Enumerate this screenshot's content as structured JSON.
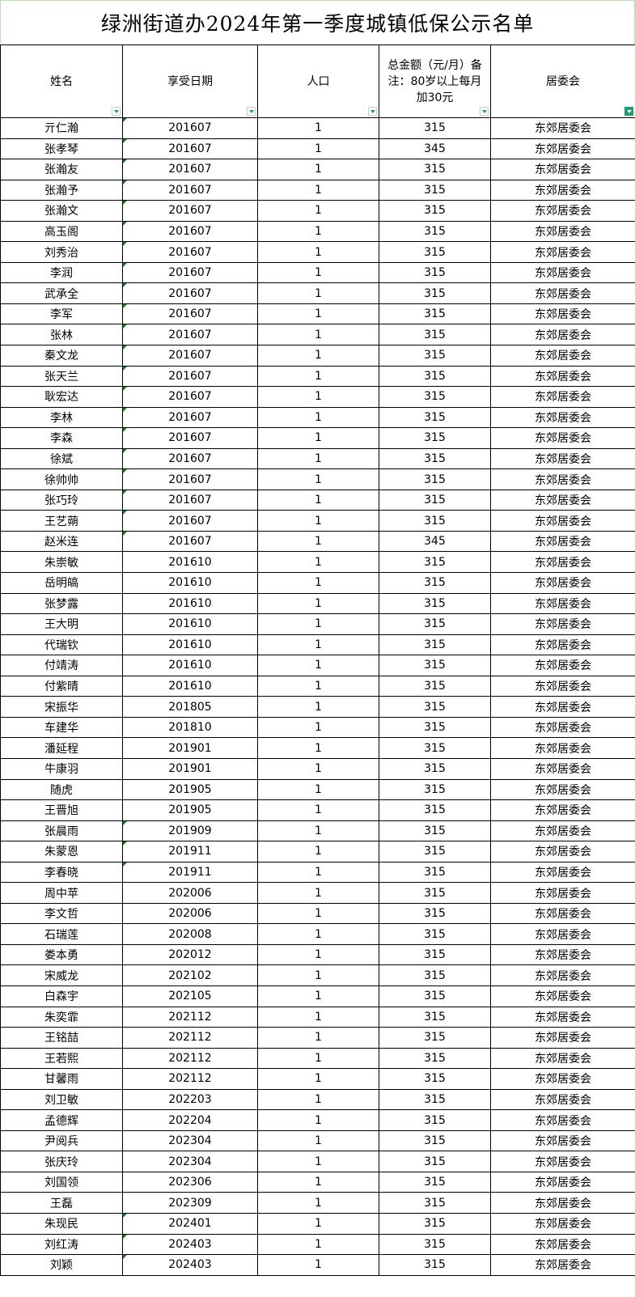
{
  "title": "绿洲街道办2024年第一季度城镇低保公示名单",
  "colors": {
    "filter_accent": "#1a9e6b",
    "text_marker": "#1d7a1d",
    "title_border": "#b9dcb9"
  },
  "columns": [
    {
      "label": "姓名",
      "filter_active": false
    },
    {
      "label": "享受日期",
      "filter_active": false
    },
    {
      "label": "人口",
      "filter_active": false
    },
    {
      "label": "总金额（元/月）备注：80岁以上每月加30元",
      "filter_active": false
    },
    {
      "label": "居委会",
      "filter_active": true
    }
  ],
  "rows": [
    [
      "亓仁瀚",
      "201607",
      "1",
      "315",
      "东郊居委会",
      true
    ],
    [
      "张孝琴",
      "201607",
      "1",
      "345",
      "东郊居委会",
      true
    ],
    [
      "张瀚友",
      "201607",
      "1",
      "315",
      "东郊居委会",
      true
    ],
    [
      "张瀚予",
      "201607",
      "1",
      "315",
      "东郊居委会",
      true
    ],
    [
      "张瀚文",
      "201607",
      "1",
      "315",
      "东郊居委会",
      true
    ],
    [
      "高玉阁",
      "201607",
      "1",
      "315",
      "东郊居委会",
      true
    ],
    [
      "刘秀治",
      "201607",
      "1",
      "315",
      "东郊居委会",
      true
    ],
    [
      "李润",
      "201607",
      "1",
      "315",
      "东郊居委会",
      true
    ],
    [
      "武承全",
      "201607",
      "1",
      "315",
      "东郊居委会",
      true
    ],
    [
      "李军",
      "201607",
      "1",
      "315",
      "东郊居委会",
      true
    ],
    [
      "张林",
      "201607",
      "1",
      "315",
      "东郊居委会",
      true
    ],
    [
      "秦文龙",
      "201607",
      "1",
      "315",
      "东郊居委会",
      true
    ],
    [
      "张天兰",
      "201607",
      "1",
      "315",
      "东郊居委会",
      true
    ],
    [
      "耿宏达",
      "201607",
      "1",
      "315",
      "东郊居委会",
      true
    ],
    [
      "李林",
      "201607",
      "1",
      "315",
      "东郊居委会",
      true
    ],
    [
      "李森",
      "201607",
      "1",
      "315",
      "东郊居委会",
      true
    ],
    [
      "徐斌",
      "201607",
      "1",
      "315",
      "东郊居委会",
      true
    ],
    [
      "徐帅帅",
      "201607",
      "1",
      "315",
      "东郊居委会",
      true
    ],
    [
      "张巧玲",
      "201607",
      "1",
      "315",
      "东郊居委会",
      true
    ],
    [
      "王艺蒴",
      "201607",
      "1",
      "315",
      "东郊居委会",
      true
    ],
    [
      "赵米连",
      "201607",
      "1",
      "345",
      "东郊居委会",
      true
    ],
    [
      "朱崇敏",
      "201610",
      "1",
      "315",
      "东郊居委会",
      false
    ],
    [
      "岳明皜",
      "201610",
      "1",
      "315",
      "东郊居委会",
      false
    ],
    [
      "张梦露",
      "201610",
      "1",
      "315",
      "东郊居委会",
      false
    ],
    [
      "王大明",
      "201610",
      "1",
      "315",
      "东郊居委会",
      false
    ],
    [
      "代瑞钦",
      "201610",
      "1",
      "315",
      "东郊居委会",
      false
    ],
    [
      "付靖涛",
      "201610",
      "1",
      "315",
      "东郊居委会",
      false
    ],
    [
      "付紫晴",
      "201610",
      "1",
      "315",
      "东郊居委会",
      false
    ],
    [
      "宋振华",
      "201805",
      "1",
      "315",
      "东郊居委会",
      false
    ],
    [
      "车建华",
      "201810",
      "1",
      "315",
      "东郊居委会",
      false
    ],
    [
      "潘延程",
      "201901",
      "1",
      "315",
      "东郊居委会",
      false
    ],
    [
      "牛康羽",
      "201901",
      "1",
      "315",
      "东郊居委会",
      false
    ],
    [
      "随虎",
      "201905",
      "1",
      "315",
      "东郊居委会",
      false
    ],
    [
      "王晋旭",
      "201905",
      "1",
      "315",
      "东郊居委会",
      false
    ],
    [
      "张晨雨",
      "201909",
      "1",
      "315",
      "东郊居委会",
      true
    ],
    [
      "朱蒙恩",
      "201911",
      "1",
      "315",
      "东郊居委会",
      true
    ],
    [
      "李春晓",
      "201911",
      "1",
      "315",
      "东郊居委会",
      true
    ],
    [
      "周中苹",
      "202006",
      "1",
      "315",
      "东郊居委会",
      false
    ],
    [
      "李文哲",
      "202006",
      "1",
      "315",
      "东郊居委会",
      false
    ],
    [
      "石瑞莲",
      "202008",
      "1",
      "315",
      "东郊居委会",
      false
    ],
    [
      "娄本勇",
      "202012",
      "1",
      "315",
      "东郊居委会",
      false
    ],
    [
      "宋威龙",
      "202102",
      "1",
      "315",
      "东郊居委会",
      false
    ],
    [
      "白森宇",
      "202105",
      "1",
      "315",
      "东郊居委会",
      false
    ],
    [
      "朱奕霏",
      "202112",
      "1",
      "315",
      "东郊居委会",
      false
    ],
    [
      "王铭喆",
      "202112",
      "1",
      "315",
      "东郊居委会",
      false
    ],
    [
      "王若熙",
      "202112",
      "1",
      "315",
      "东郊居委会",
      false
    ],
    [
      "甘馨雨",
      "202112",
      "1",
      "315",
      "东郊居委会",
      false
    ],
    [
      "刘卫敏",
      "202203",
      "1",
      "315",
      "东郊居委会",
      false
    ],
    [
      "孟德辉",
      "202204",
      "1",
      "315",
      "东郊居委会",
      false
    ],
    [
      "尹阅兵",
      "202304",
      "1",
      "315",
      "东郊居委会",
      false
    ],
    [
      "张庆玲",
      "202304",
      "1",
      "315",
      "东郊居委会",
      false
    ],
    [
      "刘国领",
      "202306",
      "1",
      "315",
      "东郊居委会",
      false
    ],
    [
      "王磊",
      "202309",
      "1",
      "315",
      "东郊居委会",
      false
    ],
    [
      "朱现民",
      "202401",
      "1",
      "315",
      "东郊居委会",
      true
    ],
    [
      "刘红涛",
      "202403",
      "1",
      "315",
      "东郊居委会",
      true
    ],
    [
      "刘颖",
      "202403",
      "1",
      "315",
      "东郊居委会",
      true
    ]
  ]
}
